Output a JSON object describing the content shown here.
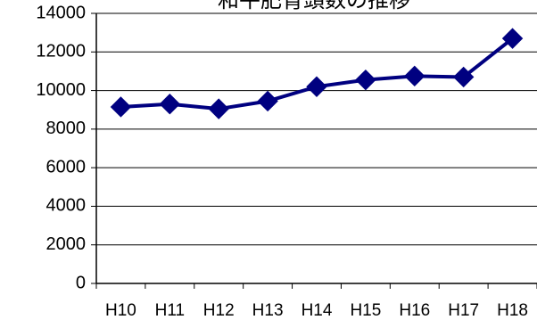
{
  "chart_data": {
    "type": "line",
    "title": "和牛肥育頭数の推移",
    "categories": [
      "H10",
      "H11",
      "H12",
      "H13",
      "H14",
      "H15",
      "H16",
      "H17",
      "H18"
    ],
    "series": [
      {
        "values": [
          9150,
          9300,
          9050,
          9450,
          10200,
          10550,
          10750,
          10700,
          12700
        ]
      }
    ],
    "ylim": [
      0,
      14000
    ],
    "yticks": [
      0,
      2000,
      4000,
      6000,
      8000,
      10000,
      12000,
      14000
    ],
    "grid": true,
    "legend": "none",
    "xlabel": "",
    "ylabel": ""
  },
  "colors": {
    "series": "#000080",
    "grid": "#000000",
    "text": "#000000"
  },
  "marker": "diamond"
}
